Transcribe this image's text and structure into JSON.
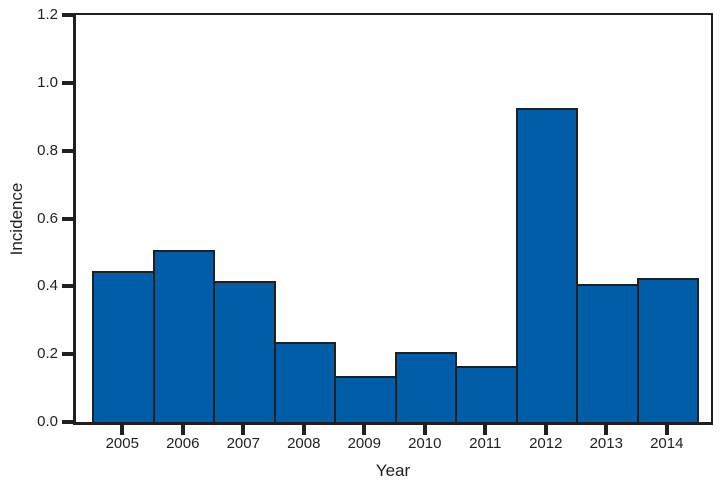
{
  "figure": {
    "background": "#ffffff"
  },
  "chart_data": {
    "type": "bar",
    "title": "",
    "xlabel": "Year",
    "ylabel": "Incidence",
    "categories": [
      "2005",
      "2006",
      "2007",
      "2008",
      "2009",
      "2010",
      "2011",
      "2012",
      "2013",
      "2014"
    ],
    "values": [
      0.44,
      0.5,
      0.41,
      0.23,
      0.13,
      0.2,
      0.16,
      0.92,
      0.4,
      0.42
    ],
    "ylim": [
      0,
      1.2
    ],
    "ytick_labels": [
      "0.0",
      "0.2",
      "0.4",
      "0.6",
      "0.8",
      "1.0",
      "1.2"
    ],
    "grid": false,
    "legend": null,
    "colors": {
      "bar_fill": "#005EA8",
      "bar_border": "#231F20",
      "axis": "#231F20",
      "text": "#231F20"
    }
  }
}
